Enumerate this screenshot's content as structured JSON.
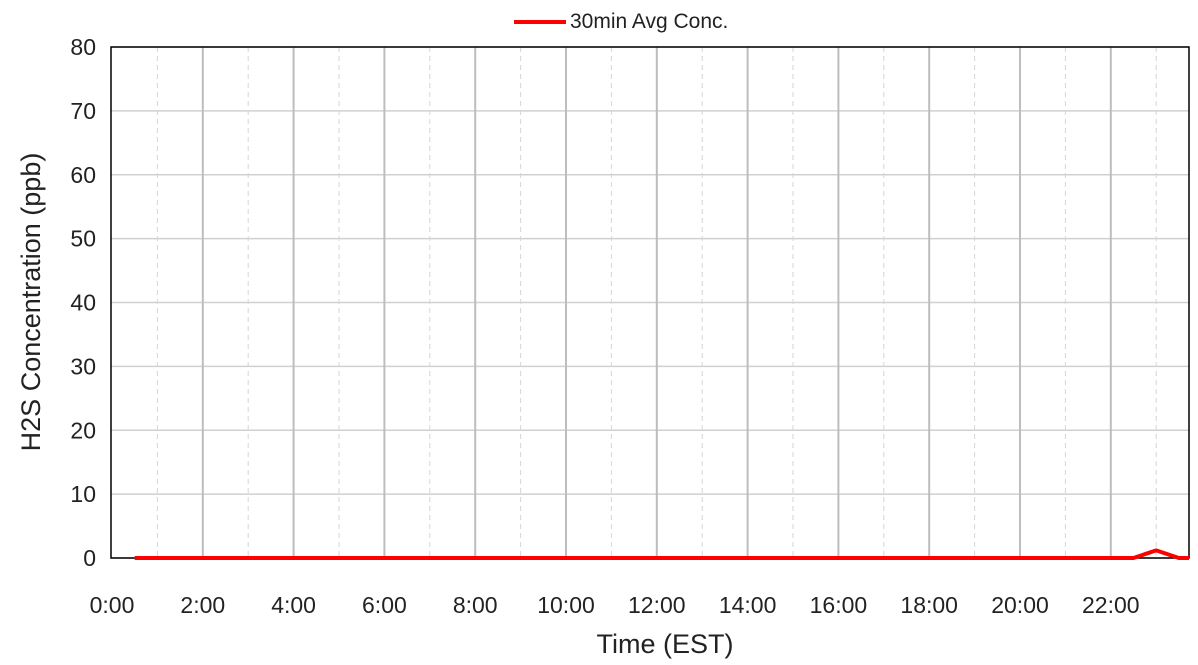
{
  "chart_data": {
    "type": "line",
    "title": "",
    "xlabel": "Time (EST)",
    "ylabel": "H2S Concentration (ppb)",
    "ylim": [
      0,
      80
    ],
    "yticks": [
      0,
      10,
      20,
      30,
      40,
      50,
      60,
      70,
      80
    ],
    "xlim_hours": [
      0,
      24
    ],
    "xtick_labels": [
      "0:00",
      "2:00",
      "4:00",
      "6:00",
      "8:00",
      "10:00",
      "12:00",
      "14:00",
      "16:00",
      "18:00",
      "20:00",
      "22:00"
    ],
    "grid": true,
    "legend_position": "top-center",
    "series": [
      {
        "name": "30min Avg Conc.",
        "color": "#ff0000",
        "x": [
          "0:30",
          "1:00",
          "1:30",
          "2:00",
          "2:30",
          "3:00",
          "3:30",
          "4:00",
          "4:30",
          "5:00",
          "5:30",
          "6:00",
          "6:30",
          "7:00",
          "7:30",
          "8:00",
          "8:30",
          "9:00",
          "9:30",
          "10:00",
          "10:30",
          "11:00",
          "11:30",
          "12:00",
          "12:30",
          "13:00",
          "13:30",
          "14:00",
          "14:30",
          "15:00",
          "15:30",
          "16:00",
          "16:30",
          "17:00",
          "17:30",
          "18:00",
          "18:30",
          "19:00",
          "19:30",
          "20:00",
          "20:30",
          "21:00",
          "21:30",
          "22:00",
          "22:30",
          "23:00",
          "23:30",
          "24:00"
        ],
        "values": [
          0,
          0,
          0,
          0,
          0,
          0,
          0,
          0,
          0,
          0,
          0,
          0,
          0,
          0,
          0,
          0,
          0,
          0,
          0,
          0,
          0,
          0,
          0,
          0,
          0,
          0,
          0,
          0,
          0,
          0,
          0,
          0,
          0,
          0,
          0,
          0,
          0,
          0,
          0,
          0,
          0,
          0,
          0,
          0,
          0,
          1.2,
          0,
          0
        ]
      }
    ]
  }
}
